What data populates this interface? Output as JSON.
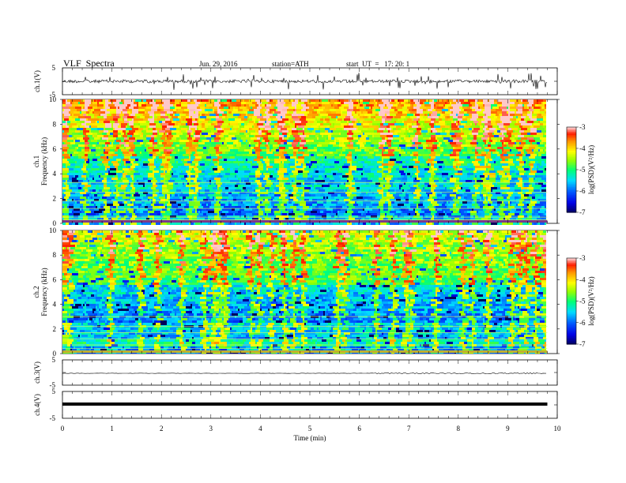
{
  "header": {
    "title": "VLF  Spectra",
    "date": "Jun. 29, 2016",
    "station": "station=ATH",
    "start": "start  UT  =   17: 20: 1"
  },
  "chart_data": [
    {
      "type": "line",
      "panel": "ch1-waveform",
      "ylabel": "ch.1(V)",
      "yticks": [
        "5",
        "-5"
      ],
      "ylim": [
        -5,
        5
      ],
      "xlim": [
        0,
        10
      ],
      "baseline_v": 0.0
    },
    {
      "type": "heatmap",
      "panel": "ch1-spectrogram",
      "ylabel": "ch.1\nFrequency  (kHz)",
      "ylabel_ch": "ch.1",
      "ylabel_freq": "Frequency  (kHz)",
      "yticks": [
        "0",
        "2",
        "4",
        "6",
        "8",
        "10"
      ],
      "ylim_khz": [
        0,
        10
      ],
      "xlim_min": [
        0,
        10
      ],
      "data_end_min": 9.8,
      "colorbar": {
        "label": "log(PSD)(V²/Hz)",
        "ticks": [
          "-3",
          "-4",
          "-5",
          "-6",
          "-7"
        ],
        "range": [
          -7,
          -3
        ]
      }
    },
    {
      "type": "heatmap",
      "panel": "ch2-spectrogram",
      "ylabel": "ch.2\nFrequency  (kHz)",
      "ylabel_ch": "ch.2",
      "ylabel_freq": "Frequency  (kHz)",
      "yticks": [
        "0",
        "2",
        "4",
        "6",
        "8",
        "10"
      ],
      "ylim_khz": [
        0,
        10
      ],
      "xlim_min": [
        0,
        10
      ],
      "data_end_min": 9.8,
      "colorbar": {
        "label": "log(PSD)(V²/Hz)",
        "ticks": [
          "-3",
          "-4",
          "-5",
          "-6",
          "-7"
        ],
        "range": [
          -7,
          -3
        ]
      }
    },
    {
      "type": "line",
      "panel": "ch3-waveform",
      "ylabel": "ch.3(V)",
      "yticks": [
        "5",
        "-5"
      ],
      "ylim": [
        -5,
        5
      ],
      "xlim": [
        0,
        10
      ],
      "baseline_v": 0.0
    },
    {
      "type": "line",
      "panel": "ch4-waveform",
      "ylabel": "ch.4(V)",
      "yticks": [
        "5",
        "-5"
      ],
      "ylim": [
        -5,
        5
      ],
      "xlim": [
        0,
        10
      ],
      "baseline_v": 0.0
    }
  ],
  "xaxis": {
    "label": "Time  (min)",
    "ticks": [
      "0",
      "1",
      "2",
      "3",
      "4",
      "5",
      "6",
      "7",
      "8",
      "9",
      "10"
    ]
  },
  "colors": {
    "frame": "#000000",
    "colormap": [
      "#000066",
      "#0000ff",
      "#00c8ff",
      "#00ff80",
      "#aaff00",
      "#ffff00",
      "#ffa000",
      "#ff3000",
      "#ffb0b0",
      "#ffffff"
    ]
  }
}
